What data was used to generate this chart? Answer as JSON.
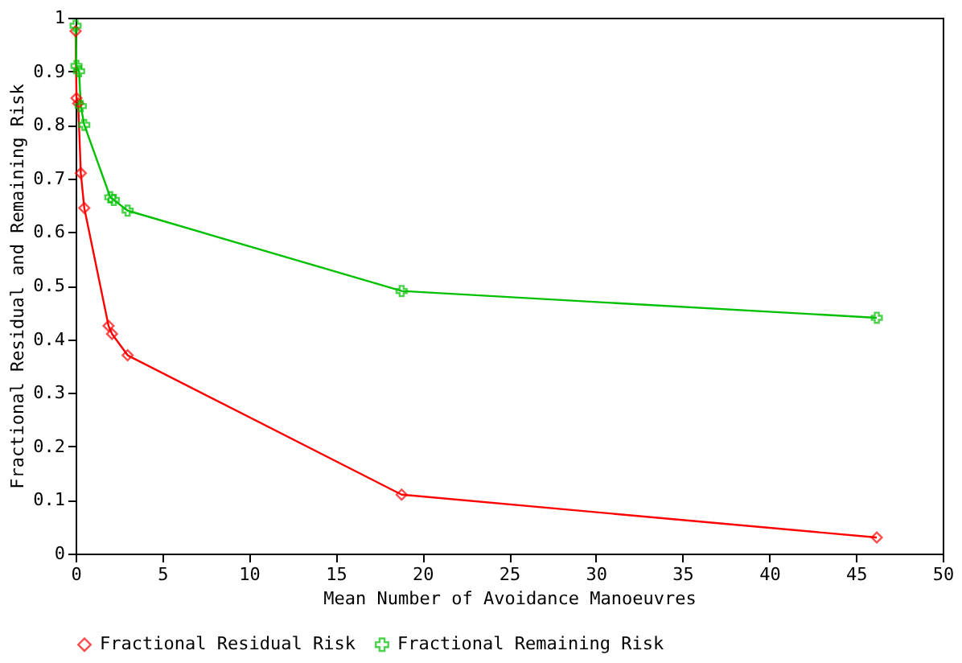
{
  "chart_data": {
    "type": "line",
    "xlabel": "Mean Number of Avoidance Manoeuvres",
    "ylabel": "Fractional Residual and Remaining Risk",
    "xlim": [
      0,
      50
    ],
    "xticks": [
      0,
      5,
      10,
      15,
      20,
      25,
      30,
      35,
      40,
      45,
      50
    ],
    "ylim": [
      0,
      1
    ],
    "yticks": [
      0,
      0.1,
      0.2,
      0.3,
      0.4,
      0.5,
      0.6,
      0.7,
      0.8,
      0.9,
      1
    ],
    "grid": false,
    "legend": "bottom",
    "line_style": "solid",
    "series": [
      {
        "name": "Fractional Residual Risk",
        "color": "#ff0000",
        "marker": "diamond",
        "x": [
          0,
          0.05,
          0.15,
          0.3,
          0.5,
          1.9,
          2.1,
          3,
          18.8,
          46.2
        ],
        "values": [
          0.975,
          0.85,
          0.84,
          0.71,
          0.645,
          0.425,
          0.41,
          0.37,
          0.11,
          0.03
        ]
      },
      {
        "name": "Fractional Remaining Risk",
        "color": "#00c000",
        "marker": "cross",
        "x": [
          0,
          0.05,
          0.2,
          0.3,
          0.5,
          2,
          2.2,
          3,
          18.8,
          46.2
        ],
        "values": [
          0.985,
          0.91,
          0.9,
          0.835,
          0.8,
          0.665,
          0.66,
          0.64,
          0.49,
          0.44
        ]
      }
    ]
  }
}
